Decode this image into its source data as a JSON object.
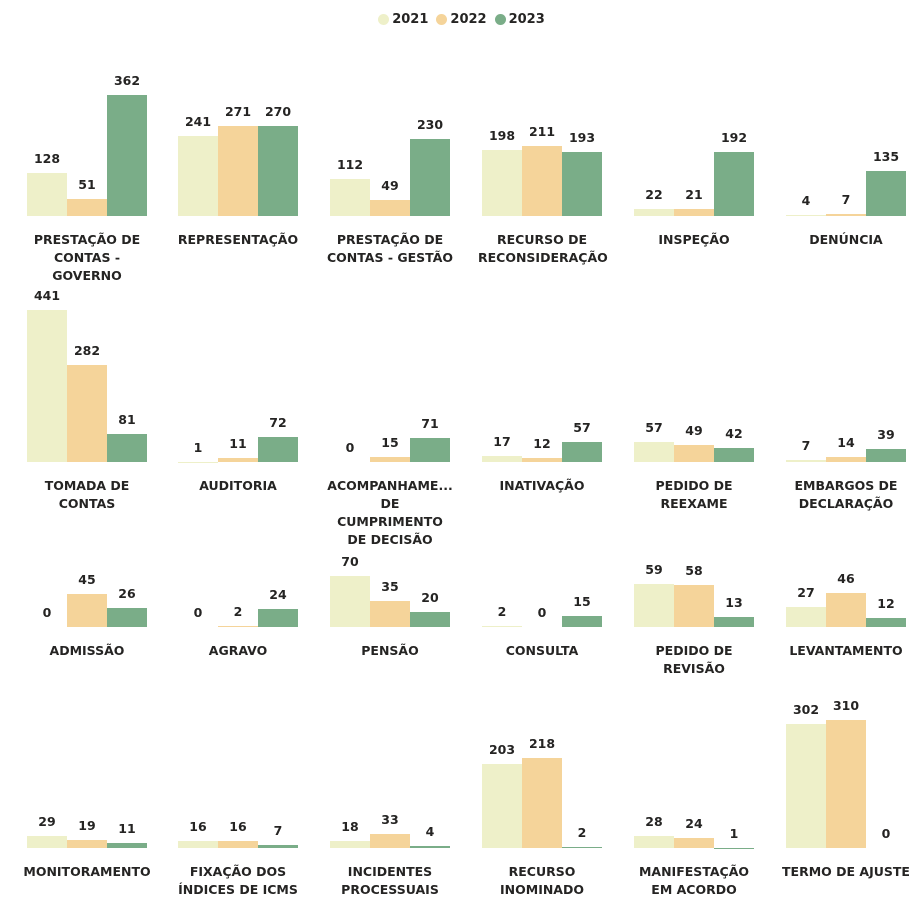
{
  "chart_data": {
    "type": "bar",
    "series": [
      {
        "name": "2021",
        "color": "#eef0c9"
      },
      {
        "name": "2022",
        "color": "#f5d49a"
      },
      {
        "name": "2023",
        "color": "#7aad88"
      }
    ],
    "panels": [
      {
        "category": "PRESTAÇÃO DE CONTAS - GOVERNO",
        "values": [
          128,
          51,
          362
        ],
        "ylim": [
          0,
          420
        ]
      },
      {
        "category": "REPRESENTAÇÃO",
        "values": [
          241,
          271,
          270
        ],
        "ylim": [
          0,
          420
        ]
      },
      {
        "category": "PRESTAÇÃO DE CONTAS - GESTÃO",
        "values": [
          112,
          49,
          230
        ],
        "ylim": [
          0,
          420
        ]
      },
      {
        "category": "RECURSO DE RECONSIDERAÇÃO",
        "values": [
          198,
          211,
          193
        ],
        "ylim": [
          0,
          420
        ]
      },
      {
        "category": "INSPEÇÃO",
        "values": [
          22,
          21,
          192
        ],
        "ylim": [
          0,
          420
        ]
      },
      {
        "category": "DENÚNCIA",
        "values": [
          4,
          7,
          135
        ],
        "ylim": [
          0,
          420
        ]
      },
      {
        "category": "TOMADA DE CONTAS",
        "values": [
          441,
          282,
          81
        ],
        "ylim": [
          0,
          470
        ]
      },
      {
        "category": "AUDITORIA",
        "values": [
          1,
          11,
          72
        ],
        "ylim": [
          0,
          470
        ]
      },
      {
        "category": "ACOMPANHAME... DE CUMPRIMENTO DE DECISÃO",
        "values": [
          0,
          15,
          71
        ],
        "ylim": [
          0,
          470
        ]
      },
      {
        "category": "INATIVAÇÃO",
        "values": [
          17,
          12,
          57
        ],
        "ylim": [
          0,
          470
        ]
      },
      {
        "category": "PEDIDO DE REEXAME",
        "values": [
          57,
          49,
          42
        ],
        "ylim": [
          0,
          470
        ]
      },
      {
        "category": "EMBARGOS DE DECLARAÇÃO",
        "values": [
          7,
          14,
          39
        ],
        "ylim": [
          0,
          470
        ]
      },
      {
        "category": "ADMISSÃO",
        "values": [
          0,
          45,
          26
        ],
        "ylim": [
          0,
          82
        ]
      },
      {
        "category": "AGRAVO",
        "values": [
          0,
          2,
          24
        ],
        "ylim": [
          0,
          82
        ]
      },
      {
        "category": "PENSÃO",
        "values": [
          70,
          35,
          20
        ],
        "ylim": [
          0,
          82
        ]
      },
      {
        "category": "CONSULTA",
        "values": [
          2,
          0,
          15
        ],
        "ylim": [
          0,
          82
        ]
      },
      {
        "category": "PEDIDO DE REVISÃO",
        "values": [
          59,
          58,
          13
        ],
        "ylim": [
          0,
          82
        ]
      },
      {
        "category": "LEVANTAMENTO",
        "values": [
          27,
          46,
          12
        ],
        "ylim": [
          0,
          82
        ]
      },
      {
        "category": "MONITORAMENTO",
        "values": [
          29,
          19,
          11
        ],
        "ylim": [
          0,
          340
        ]
      },
      {
        "category": "FIXAÇÃO DOS ÍNDICES DE ICMS",
        "values": [
          16,
          16,
          7
        ],
        "ylim": [
          0,
          340
        ]
      },
      {
        "category": "INCIDENTES PROCESSUAIS",
        "values": [
          18,
          33,
          4
        ],
        "ylim": [
          0,
          340
        ]
      },
      {
        "category": "RECURSO INOMINADO",
        "values": [
          203,
          218,
          2
        ],
        "ylim": [
          0,
          340
        ]
      },
      {
        "category": "MANIFESTAÇÃO EM ACORDO",
        "values": [
          28,
          24,
          1
        ],
        "ylim": [
          0,
          340
        ]
      },
      {
        "category": "TERMO DE AJUSTE",
        "values": [
          302,
          310,
          0
        ],
        "ylim": [
          0,
          340
        ]
      }
    ]
  }
}
